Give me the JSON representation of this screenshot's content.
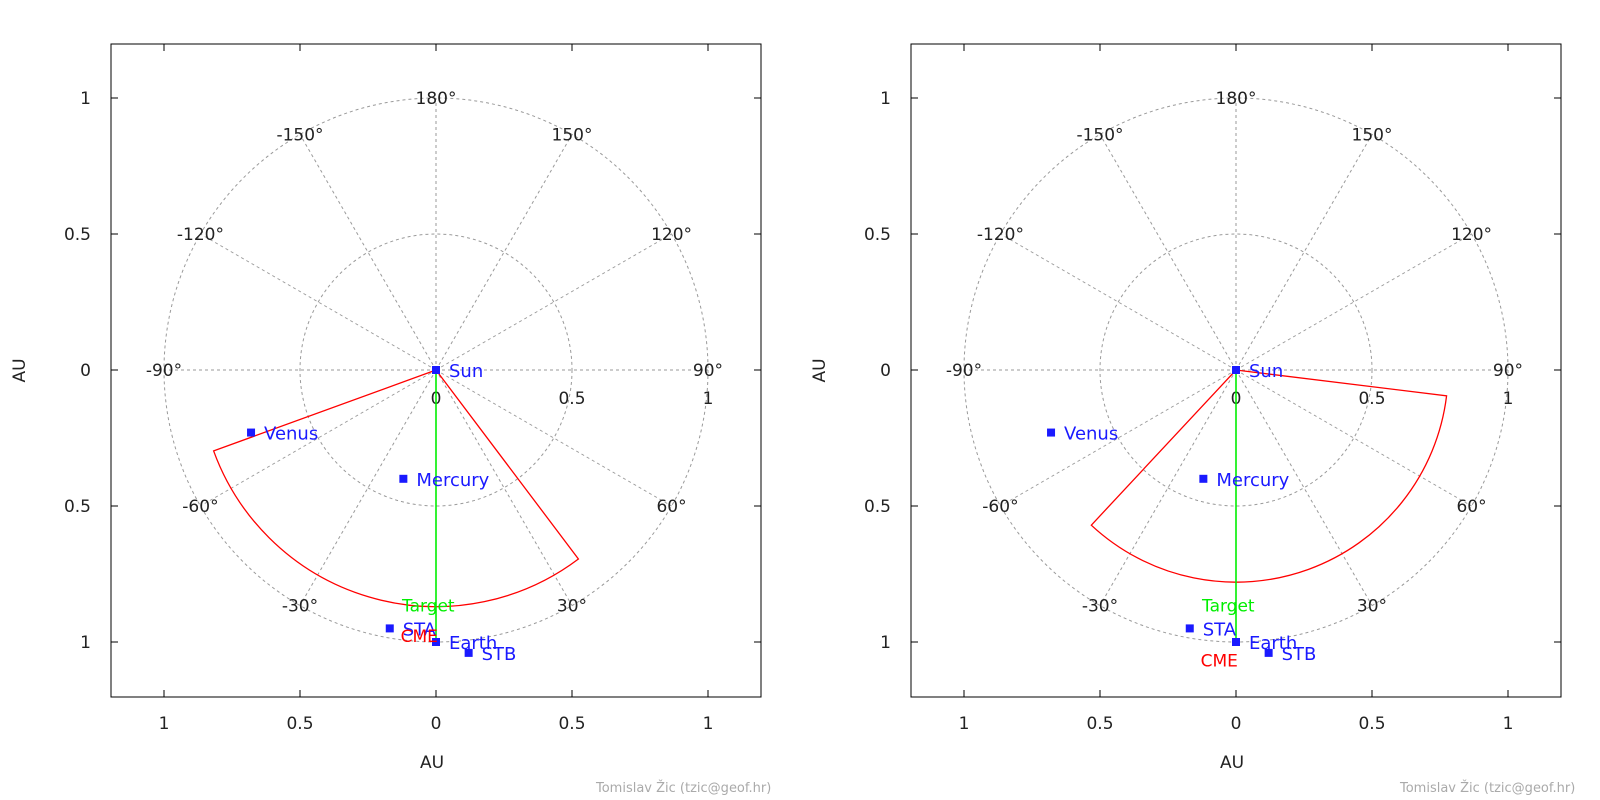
{
  "chart_data": [
    {
      "type": "polar-map",
      "axis_label_x": "AU",
      "axis_label_y": "AU",
      "xlim": [
        -1.2,
        1.2
      ],
      "ylim": [
        -1.2,
        1.2
      ],
      "x_ticks": [
        {
          "v": -1,
          "label": "1"
        },
        {
          "v": -0.5,
          "label": "0.5"
        },
        {
          "v": 0,
          "label": "0"
        },
        {
          "v": 0.5,
          "label": "0.5"
        },
        {
          "v": 1,
          "label": "1"
        }
      ],
      "y_ticks": [
        {
          "v": 1,
          "label": "1"
        },
        {
          "v": 0.5,
          "label": "0.5"
        },
        {
          "v": 0,
          "label": "0"
        },
        {
          "v": -0.5,
          "label": "0.5"
        },
        {
          "v": -1,
          "label": "1"
        }
      ],
      "radial_labels": [
        {
          "r": 0,
          "label": "0"
        },
        {
          "r": 0.5,
          "label": "0.5"
        },
        {
          "r": 1,
          "label": "1"
        }
      ],
      "grid_circles": [
        0.5,
        1.0
      ],
      "angle_labels": [
        {
          "deg": 180,
          "label": "180°"
        },
        {
          "deg": 150,
          "label": "150°"
        },
        {
          "deg": 120,
          "label": "120°"
        },
        {
          "deg": 90,
          "label": "90°"
        },
        {
          "deg": 60,
          "label": "60°"
        },
        {
          "deg": 30,
          "label": "30°"
        },
        {
          "deg": -150,
          "label": "-150°"
        },
        {
          "deg": -120,
          "label": "-120°"
        },
        {
          "deg": -90,
          "label": "-90°"
        },
        {
          "deg": -60,
          "label": "-60°"
        },
        {
          "deg": -30,
          "label": "-30°"
        }
      ],
      "bodies": [
        {
          "name": "Sun",
          "x": 0.0,
          "y": 0.0
        },
        {
          "name": "Mercury",
          "x": -0.12,
          "y": -0.4
        },
        {
          "name": "Venus",
          "x": -0.68,
          "y": -0.23
        },
        {
          "name": "Earth",
          "x": 0.0,
          "y": -1.0
        },
        {
          "name": "STA",
          "x": -0.17,
          "y": -0.95
        },
        {
          "name": "STB",
          "x": 0.12,
          "y": -1.04
        }
      ],
      "target": {
        "label": "Target",
        "x": 0.0,
        "y": -0.99
      },
      "cme": {
        "label": "CME",
        "radius": 0.87,
        "start_deg": -70,
        "end_deg": 37
      }
    },
    {
      "type": "polar-map",
      "axis_label_x": "AU",
      "axis_label_y": "AU",
      "xlim": [
        -1.2,
        1.2
      ],
      "ylim": [
        -1.2,
        1.2
      ],
      "x_ticks": [
        {
          "v": -1,
          "label": "1"
        },
        {
          "v": -0.5,
          "label": "0.5"
        },
        {
          "v": 0,
          "label": "0"
        },
        {
          "v": 0.5,
          "label": "0.5"
        },
        {
          "v": 1,
          "label": "1"
        }
      ],
      "y_ticks": [
        {
          "v": 1,
          "label": "1"
        },
        {
          "v": 0.5,
          "label": "0.5"
        },
        {
          "v": 0,
          "label": "0"
        },
        {
          "v": -0.5,
          "label": "0.5"
        },
        {
          "v": -1,
          "label": "1"
        }
      ],
      "radial_labels": [
        {
          "r": 0,
          "label": "0"
        },
        {
          "r": 0.5,
          "label": "0.5"
        },
        {
          "r": 1,
          "label": "1"
        }
      ],
      "grid_circles": [
        0.5,
        1.0
      ],
      "angle_labels": [
        {
          "deg": 180,
          "label": "180°"
        },
        {
          "deg": 150,
          "label": "150°"
        },
        {
          "deg": 120,
          "label": "120°"
        },
        {
          "deg": 90,
          "label": "90°"
        },
        {
          "deg": 60,
          "label": "60°"
        },
        {
          "deg": 30,
          "label": "30°"
        },
        {
          "deg": -150,
          "label": "-150°"
        },
        {
          "deg": -120,
          "label": "-120°"
        },
        {
          "deg": -90,
          "label": "-90°"
        },
        {
          "deg": -60,
          "label": "-60°"
        },
        {
          "deg": -30,
          "label": "-30°"
        }
      ],
      "bodies": [
        {
          "name": "Sun",
          "x": 0.0,
          "y": 0.0
        },
        {
          "name": "Mercury",
          "x": -0.12,
          "y": -0.4
        },
        {
          "name": "Venus",
          "x": -0.68,
          "y": -0.23
        },
        {
          "name": "Earth",
          "x": 0.0,
          "y": -1.0
        },
        {
          "name": "STA",
          "x": -0.17,
          "y": -0.95
        },
        {
          "name": "STB",
          "x": 0.12,
          "y": -1.04
        }
      ],
      "target": {
        "label": "Target",
        "x": 0.0,
        "y": -0.99
      },
      "cme": {
        "label": "CME",
        "radius": 0.78,
        "start_deg": -43,
        "end_deg": 83
      }
    }
  ],
  "credit": "Tomislav Žic (tzic@geof.hr)",
  "colors": {
    "body": "#1a1aff",
    "cme": "#ff0000",
    "target": "#00ee00",
    "grid": "#9a9a9a",
    "frame": "#000000",
    "text": "#222222"
  }
}
